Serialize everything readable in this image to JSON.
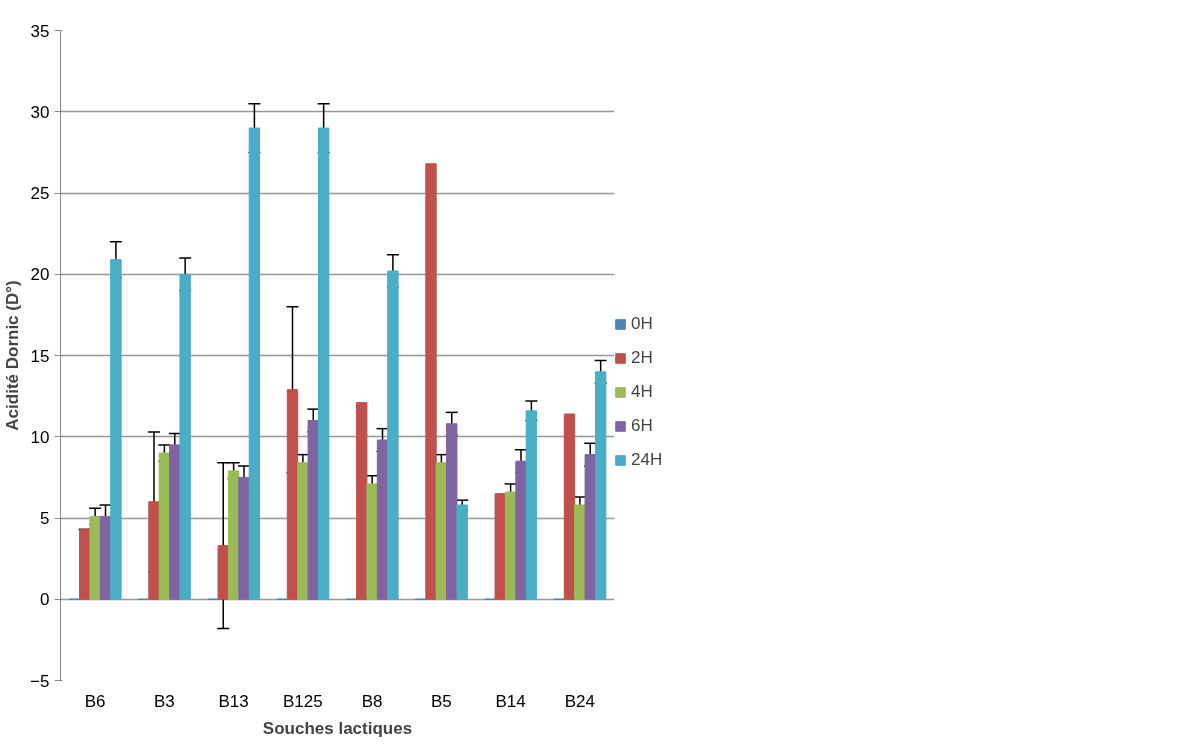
{
  "chart_data": {
    "type": "bar",
    "xlabel": "Souches lactiques",
    "ylabel": "Acidité Dornic (D°)",
    "categories": [
      "B6",
      "B3",
      "B13",
      "B125",
      "B8",
      "B5",
      "B14",
      "B24"
    ],
    "ylim": [
      -5,
      35
    ],
    "yticks": [
      -5,
      0,
      5,
      10,
      15,
      20,
      25,
      30,
      35
    ],
    "grid": "y",
    "legend": "right",
    "series": [
      {
        "name": "0H",
        "color": "#4f81bd",
        "values": [
          0,
          0,
          0,
          0,
          0,
          0,
          0,
          0
        ]
      },
      {
        "name": "2H",
        "color": "#c0504d",
        "values": [
          4.3,
          6.0,
          3.3,
          12.9,
          12.1,
          26.8,
          6.5,
          11.4
        ],
        "errors": [
          0,
          4.3,
          5.1,
          5.1,
          null,
          null,
          null,
          null
        ]
      },
      {
        "name": "4H",
        "color": "#9bbb59",
        "values": [
          5.1,
          9.0,
          7.9,
          8.4,
          7.1,
          8.4,
          6.6,
          5.8
        ],
        "errors": [
          0.5,
          0.5,
          0.5,
          0.5,
          0.5,
          0.5,
          0.5,
          0.5
        ]
      },
      {
        "name": "6H",
        "color": "#8064a2",
        "values": [
          5.1,
          9.5,
          7.5,
          11.0,
          9.8,
          10.8,
          8.5,
          8.9
        ],
        "errors": [
          0.7,
          0.7,
          0.7,
          0.7,
          0.7,
          0.7,
          0.7,
          0.7
        ]
      },
      {
        "name": "24H",
        "color": "#4bacc6",
        "values": [
          20.9,
          20.0,
          29.0,
          29.0,
          20.2,
          5.8,
          11.6,
          14.0
        ],
        "errors": [
          1.1,
          1.0,
          1.5,
          1.5,
          1.0,
          0.3,
          0.6,
          0.7
        ]
      }
    ]
  }
}
